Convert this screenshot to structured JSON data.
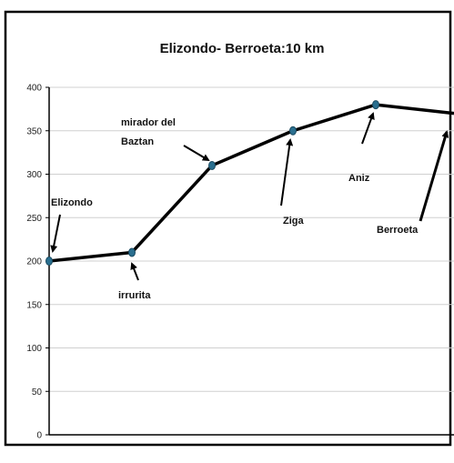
{
  "chart_data": {
    "type": "line",
    "title": "Elizondo- Berroeta:10 km",
    "xlabel": "",
    "ylabel": "",
    "ylim": [
      0,
      400
    ],
    "yticks": [
      "0",
      "50",
      "100",
      "150",
      "200",
      "250",
      "300",
      "350",
      "400"
    ],
    "grid": true,
    "legend": "none",
    "x": [
      0,
      1,
      2,
      3,
      4,
      5
    ],
    "series": [
      {
        "values": [
          200,
          210,
          310,
          350,
          380,
          370
        ],
        "color": "#000000",
        "marker_color": "#2a6f8f"
      }
    ],
    "annotations": [
      {
        "text": "Elizondo",
        "point": 0
      },
      {
        "text": "irrurita",
        "point": 1
      },
      {
        "text": "mirador del",
        "text2": "Baztan",
        "point": 2
      },
      {
        "text": "Ziga",
        "point": 3
      },
      {
        "text": "Aniz",
        "point": 4
      },
      {
        "text": "Berroeta",
        "point": 5
      }
    ]
  }
}
